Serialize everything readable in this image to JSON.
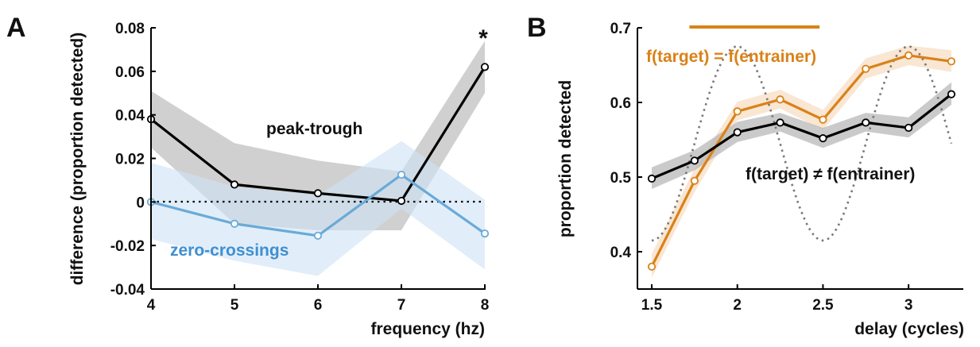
{
  "chart_data": [
    {
      "panel_label": "A",
      "type": "line",
      "xlabel": "frequency (hz)",
      "ylabel": "difference (proportion detected)",
      "xlim": [
        4,
        8
      ],
      "ylim": [
        -0.04,
        0.08
      ],
      "x_ticks": [
        "4",
        "5",
        "6",
        "7",
        "8"
      ],
      "y_ticks": [
        "0.08",
        "0.06",
        "0.04",
        "0.02",
        "0",
        "-0.02",
        "-0.04"
      ],
      "reference_line": {
        "y": 0,
        "style": "dotted"
      },
      "significance_marker": {
        "x": 8,
        "text": "*"
      },
      "series": [
        {
          "name": "peak-trough",
          "color": "#000000",
          "band_color": "#b3b3b3",
          "x": [
            4,
            5,
            6,
            7,
            8
          ],
          "values": [
            0.038,
            0.008,
            0.004,
            0.0005,
            0.062
          ],
          "lower": [
            0.025,
            -0.01,
            -0.013,
            -0.013,
            0.05
          ],
          "upper": [
            0.051,
            0.027,
            0.019,
            0.014,
            0.074
          ]
        },
        {
          "name": "zero-crossings",
          "color": "#6aaad8",
          "band_color": "#cfe3f5",
          "x": [
            4,
            5,
            6,
            7,
            8
          ],
          "values": [
            0.0,
            -0.01,
            -0.0155,
            0.0125,
            -0.0145
          ],
          "lower": [
            -0.017,
            -0.027,
            -0.034,
            -0.003,
            -0.031
          ],
          "upper": [
            0.018,
            0.007,
            0.003,
            0.028,
            0.001
          ]
        }
      ]
    },
    {
      "panel_label": "B",
      "type": "line",
      "xlabel": "delay (cycles)",
      "ylabel": "proportion detected",
      "xlim": [
        1.5,
        3.25
      ],
      "ylim": [
        0.35,
        0.7
      ],
      "x_ticks": [
        "1.5",
        "2",
        "2.5",
        "3"
      ],
      "y_ticks": [
        "0.7",
        "0.6",
        "0.5",
        "0.4"
      ],
      "significance_bar": {
        "x_start": 1.72,
        "x_end": 2.48,
        "color": "#d98218"
      },
      "reference_wave": {
        "style": "dotted",
        "color": "#777777",
        "period": 1.0,
        "peak_x": 2.0,
        "center": 0.545,
        "amplitude": 0.13
      },
      "series": [
        {
          "name": "f(target) = f(entrainer)",
          "color": "#d98218",
          "band_color": "#f7dcc0",
          "x": [
            1.5,
            1.75,
            2.0,
            2.25,
            2.5,
            2.75,
            3.0,
            3.25
          ],
          "values": [
            0.38,
            0.495,
            0.588,
            0.604,
            0.577,
            0.645,
            0.663,
            0.655
          ],
          "lower": [
            0.365,
            0.48,
            0.576,
            0.592,
            0.563,
            0.632,
            0.65,
            0.641
          ],
          "upper": [
            0.397,
            0.511,
            0.601,
            0.617,
            0.59,
            0.659,
            0.676,
            0.67
          ]
        },
        {
          "name": "f(target) ≠ f(entrainer)",
          "color": "#000000",
          "band_color": "#b3b3b3",
          "x": [
            1.5,
            1.75,
            2.0,
            2.25,
            2.5,
            2.75,
            3.0,
            3.25
          ],
          "values": [
            0.498,
            0.522,
            0.56,
            0.573,
            0.552,
            0.573,
            0.566,
            0.611
          ],
          "lower": [
            0.484,
            0.509,
            0.547,
            0.561,
            0.539,
            0.561,
            0.553,
            0.597
          ],
          "upper": [
            0.513,
            0.536,
            0.574,
            0.586,
            0.566,
            0.586,
            0.58,
            0.627
          ]
        }
      ]
    }
  ]
}
